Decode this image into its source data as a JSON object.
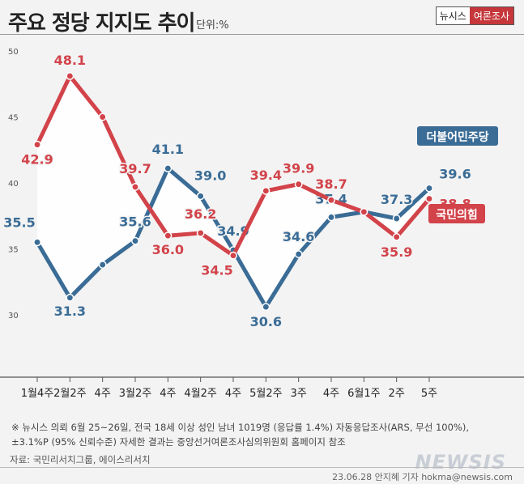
{
  "header": {
    "title": "주요 정당 지지도 추이",
    "unit": "단위:%",
    "brand_left": "뉴시스",
    "brand_right": "여론조사"
  },
  "chart_data": {
    "type": "line",
    "title": "주요 정당 지지도 추이",
    "ylabel": "단위:%",
    "ylim": [
      25,
      50
    ],
    "yticks": [
      30,
      35,
      40,
      45,
      50
    ],
    "grid": false,
    "categories": [
      "1월4주",
      "2월2주",
      "4주",
      "3월2주",
      "4주",
      "4월2주",
      "4주",
      "5월2주",
      "3주",
      "4주",
      "6월1주",
      "2주",
      "5주"
    ],
    "series": [
      {
        "name": "더불어민주당",
        "color": "#3a6c96",
        "label_bg": "#3a6c96",
        "values": [
          35.5,
          31.3,
          33.8,
          35.6,
          41.1,
          39.0,
          34.9,
          30.6,
          34.6,
          37.4,
          37.8,
          37.3,
          39.6
        ],
        "labels": [
          "35.5",
          "31.3",
          "",
          "35.6",
          "41.1",
          "39.0",
          "34.9",
          "30.6",
          "34.6",
          "37.4",
          "",
          "37.3",
          "39.6"
        ]
      },
      {
        "name": "국민의힘",
        "color": "#d2434a",
        "label_bg": "#d2434a",
        "values": [
          42.9,
          48.1,
          45.0,
          39.7,
          36.0,
          36.2,
          34.5,
          39.4,
          39.9,
          38.7,
          37.8,
          35.9,
          38.8
        ],
        "labels": [
          "42.9",
          "48.1",
          "",
          "39.7",
          "36.0",
          "36.2",
          "34.5",
          "39.4",
          "39.9",
          "38.7",
          "",
          "35.9",
          "38.8"
        ]
      }
    ]
  },
  "notes": {
    "line1": "※ 뉴시스 의뢰 6월 25~26일, 전국 18세 이상 성인 남녀 1019명 (응답률 1.4%) 자동응답조사(ARS, 무선 100%),",
    "line2": "±3.1%P (95% 신뢰수준) 자세한 결과는 중앙선거여론조사심의위원회 홈페이지 참조",
    "source": "자료: 국민리서치그룹, 에이스리서치",
    "credit": "23.06.28 안지혜 기자 hokma@newsis.com",
    "watermark": "NEWSIS"
  }
}
